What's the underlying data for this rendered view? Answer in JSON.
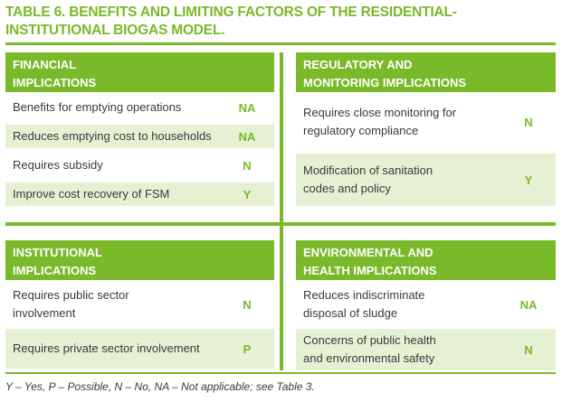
{
  "title": "TABLE 6. BENEFITS AND LIMITING FACTORS OF THE RESIDENTIAL-INSTITUTIONAL BIOGAS MODEL.",
  "colors": {
    "accent": "#7ab929",
    "shade": "#e6f1d3",
    "text": "#3a3a3a"
  },
  "panels": {
    "financial": {
      "header": [
        "FINANCIAL",
        "IMPLICATIONS"
      ],
      "rows": [
        {
          "label": "Benefits for emptying operations",
          "value": "NA"
        },
        {
          "label": "Reduces emptying cost to households",
          "value": "NA"
        },
        {
          "label": "Requires subsidy",
          "value": "N"
        },
        {
          "label": "Improve cost recovery of FSM",
          "value": "Y"
        }
      ]
    },
    "regulatory": {
      "header": [
        "REGULATORY AND",
        "MONITORING IMPLICATIONS"
      ],
      "rows": [
        {
          "label": [
            "Requires close monitoring for",
            "regulatory compliance"
          ],
          "value": "N"
        },
        {
          "label": [
            "Modification of sanitation",
            "codes and policy"
          ],
          "value": "Y"
        }
      ]
    },
    "institutional": {
      "header": [
        "INSTITUTIONAL",
        "IMPLICATIONS"
      ],
      "rows": [
        {
          "label": [
            "Requires public sector",
            "involvement"
          ],
          "value": "N"
        },
        {
          "label": [
            "Requires private sector involvement"
          ],
          "value": "P"
        }
      ]
    },
    "environmental": {
      "header": [
        "ENVIRONMENTAL AND",
        "HEALTH IMPLICATIONS"
      ],
      "rows": [
        {
          "label": [
            "Reduces indiscriminate",
            "disposal of sludge"
          ],
          "value": "NA"
        },
        {
          "label": [
            "Concerns of public health",
            "and environmental safety"
          ],
          "value": "N"
        }
      ]
    }
  },
  "footnote": "Y – Yes, P – Possible, N – No, NA – Not applicable; see Table 3."
}
